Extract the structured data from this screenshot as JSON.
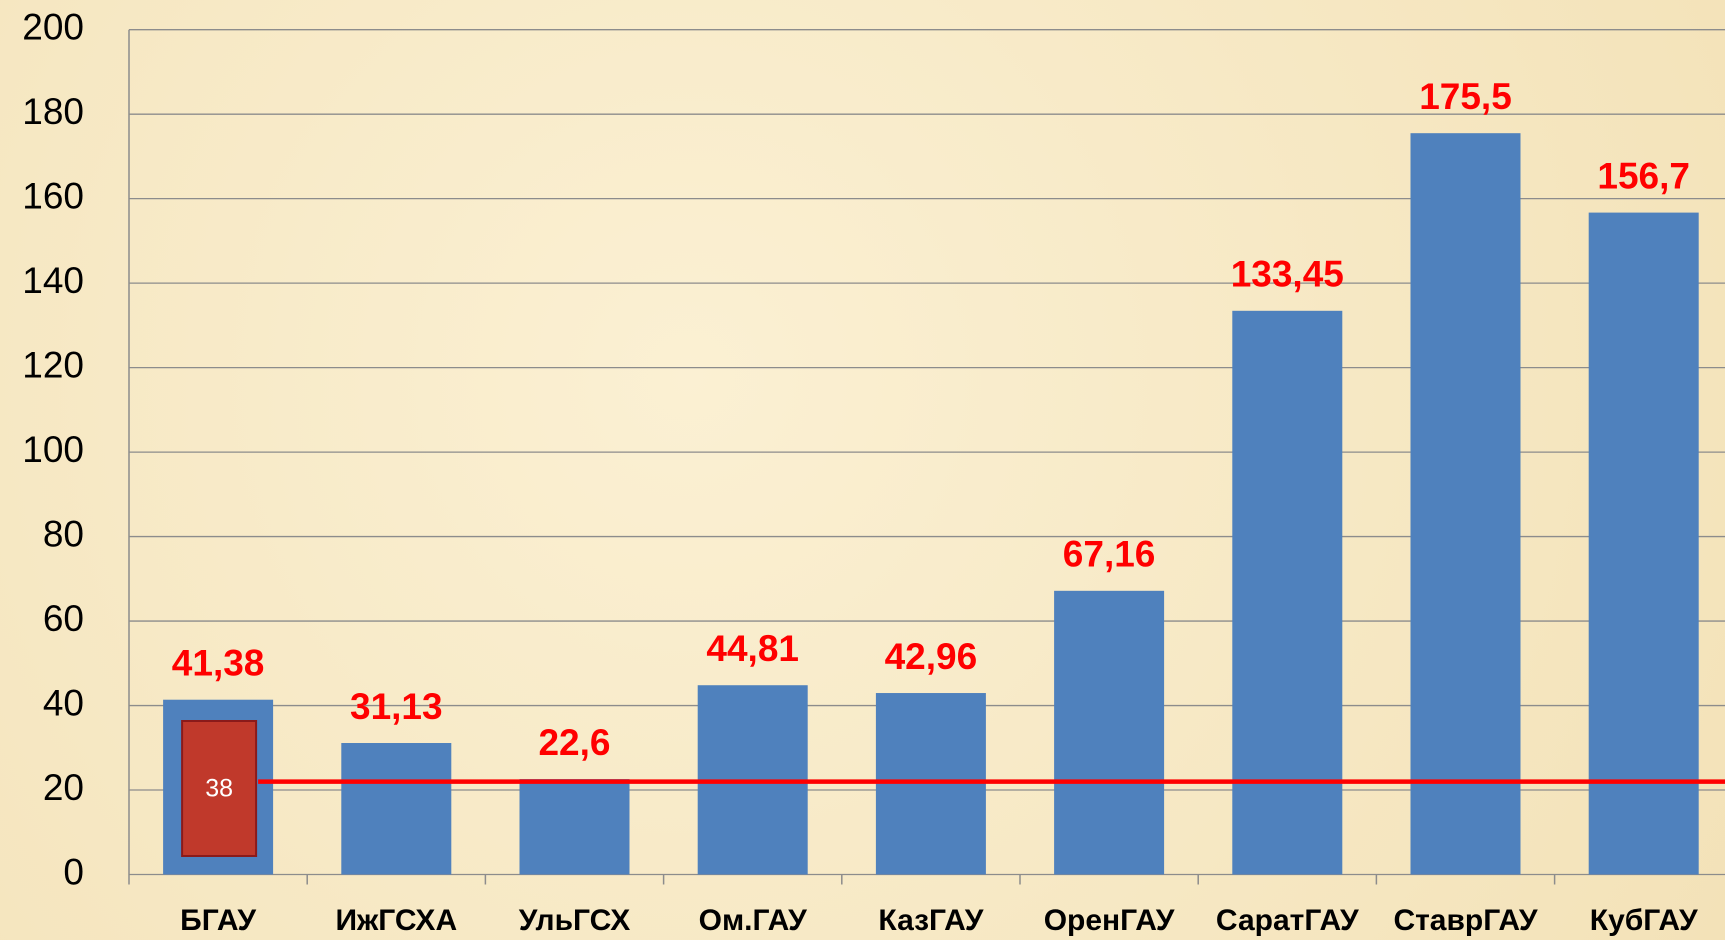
{
  "chart_data": {
    "type": "bar",
    "categories": [
      "БГАУ",
      "ИжГСХА",
      "УльГСХ",
      "Ом.ГАУ",
      "КазГАУ",
      "ОренГАУ",
      "СаратГАУ",
      "СтаврГАУ",
      "КубГАУ"
    ],
    "values": [
      41.38,
      31.13,
      22.6,
      44.81,
      42.96,
      67.16,
      133.45,
      175.5,
      156.7
    ],
    "value_labels": [
      "41,38",
      "31,13",
      "22,6",
      "44,81",
      "42,96",
      "67,16",
      "133,45",
      "175,5",
      "156,7"
    ],
    "color": "#4f81bd",
    "ylim": [
      0,
      200
    ],
    "yticks": [
      0,
      20,
      40,
      60,
      80,
      100,
      120,
      140,
      160,
      180,
      200
    ],
    "grid": true,
    "reference_line": {
      "value": 22,
      "color": "#ff0000"
    },
    "annotation": {
      "text": "38",
      "color": "#c0392b"
    }
  }
}
